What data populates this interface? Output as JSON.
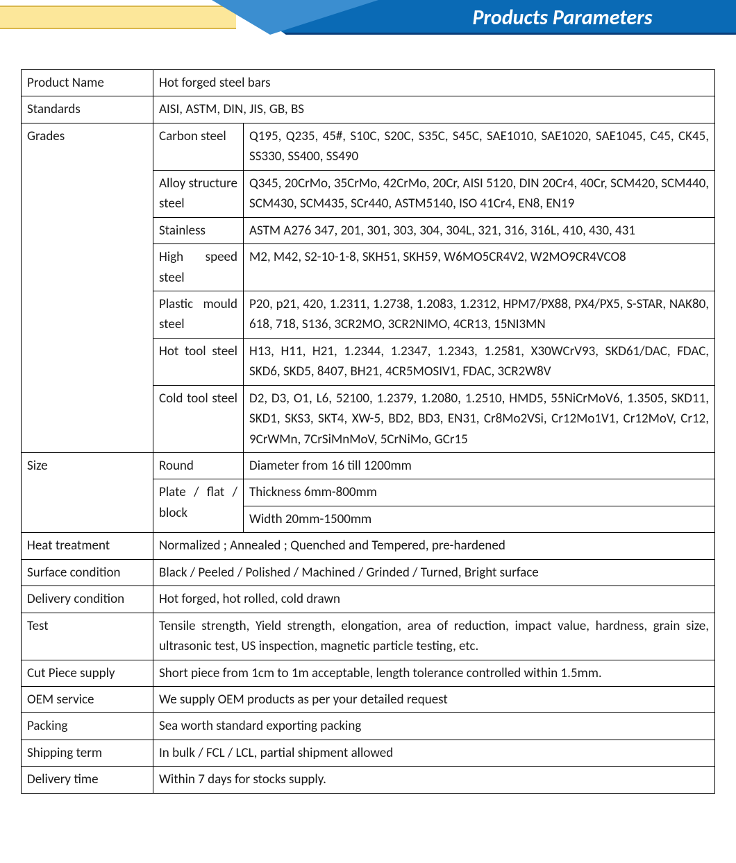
{
  "header": {
    "title": "Products Parameters",
    "yellow_bg": "#fce79a",
    "yellow_border": "#d9b74a",
    "blue_bg": "#0a6ab5",
    "blue_border": "#0a3d7a",
    "blue_overlay": "#3b8ed0",
    "title_color": "#ffffff",
    "title_fontsize": 30
  },
  "table": {
    "border_color": "#000000",
    "text_color": "#1a1a1a",
    "fontsize": 19,
    "col1_width": 190,
    "col2_width": 130,
    "rows": {
      "product_name": {
        "label": "Product Name",
        "value": "Hot forged steel bars"
      },
      "standards": {
        "label": "Standards",
        "value": "AISI, ASTM, DIN, JIS, GB, BS"
      },
      "grades": {
        "label": "Grades",
        "items": [
          {
            "sub": "Carbon steel",
            "value": "Q195, Q235, 45#, S10C, S20C, S35C, S45C, SAE1010, SAE1020, SAE1045, C45, CK45, SS330, SS400, SS490"
          },
          {
            "sub": "Alloy structure steel",
            "value": "Q345, 20CrMo, 35CrMo, 42CrMo, 20Cr, AISI 5120, DIN 20Cr4, 40Cr, SCM420, SCM440, SCM430, SCM435, SCr440, ASTM5140, ISO 41Cr4, EN8, EN19"
          },
          {
            "sub": "Stainless",
            "value": "ASTM A276 347, 201, 301, 303, 304, 304L, 321, 316, 316L, 410, 430, 431"
          },
          {
            "sub": "High speed steel",
            "value": "M2, M42, S2-10-1-8, SKH51, SKH59, W6MO5CR4V2, W2MO9CR4VCO8"
          },
          {
            "sub": "Plastic mould steel",
            "value": "P20, p21, 420, 1.2311, 1.2738, 1.2083, 1.2312, HPM7/PX88, PX4/PX5, S-STAR, NAK80, 618, 718, S136, 3CR2MO, 3CR2NIMO, 4CR13, 15NI3MN"
          },
          {
            "sub": "Hot tool steel",
            "value": "H13, H11, H21, 1.2344, 1.2347, 1.2343, 1.2581, X30WCrV93, SKD61/DAC, FDAC, SKD6, SKD5, 8407, BH21, 4CR5MOSIV1, FDAC, 3CR2W8V"
          },
          {
            "sub": "Cold tool steel",
            "value": "D2, D3, O1, L6, 52100, 1.2379, 1.2080, 1.2510, HMD5, 55NiCrMoV6, 1.3505, SKD11, SKD1, SKS3, SKT4, XW-5, BD2, BD3, EN31, Cr8Mo2VSi, Cr12Mo1V1, Cr12MoV, Cr12, 9CrWMn, 7CrSiMnMoV, 5CrNiMo, GCr15"
          }
        ]
      },
      "size": {
        "label": "Size",
        "items": [
          {
            "sub": "Round",
            "value": "Diameter from 16 till 1200mm"
          },
          {
            "sub": "Plate / flat / block",
            "values": [
              "Thickness 6mm-800mm",
              "Width 20mm-1500mm"
            ]
          }
        ]
      },
      "heat_treatment": {
        "label": "Heat treatment",
        "value": "Normalized ; Annealed ; Quenched and Tempered, pre-hardened"
      },
      "surface_condition": {
        "label": "Surface condition",
        "value": "Black / Peeled / Polished / Machined / Grinded / Turned, Bright surface"
      },
      "delivery_condition": {
        "label": "Delivery condition",
        "value": "Hot forged, hot rolled, cold drawn"
      },
      "test": {
        "label": "Test",
        "value": "Tensile strength, Yield strength, elongation, area of reduction, impact value, hardness, grain size, ultrasonic test, US inspection, magnetic particle testing, etc."
      },
      "cut_piece": {
        "label": "Cut Piece supply",
        "value": "Short piece from 1cm to 1m acceptable, length tolerance controlled within 1.5mm."
      },
      "oem": {
        "label": "OEM service",
        "value": "We supply OEM products as per your detailed request"
      },
      "packing": {
        "label": "Packing",
        "value": "Sea worth standard exporting packing"
      },
      "shipping": {
        "label": "Shipping term",
        "value": "In bulk / FCL / LCL, partial shipment allowed"
      },
      "delivery_time": {
        "label": "Delivery time",
        "value": "Within 7 days for stocks supply."
      }
    }
  }
}
